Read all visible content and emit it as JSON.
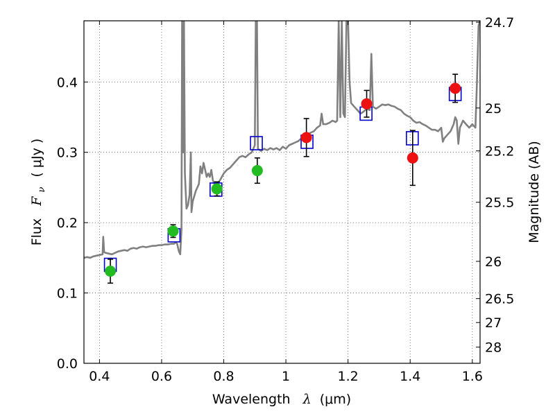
{
  "chart_data": {
    "type": "scatter",
    "title": "",
    "xlabel_prefix": "Wavelength",
    "xlabel_symbol": "λ",
    "xlabel_unit": "(μm)",
    "ylabel_prefix": "Flux",
    "ylabel_symbol_main": "F",
    "ylabel_symbol_sub": "ν",
    "ylabel_unit": "( μJy )",
    "y2label": "Magnitude (AB)",
    "xlim": [
      0.35,
      1.625
    ],
    "ylim": [
      0.0,
      0.487
    ],
    "grid": true,
    "x_ticks": [
      0.4,
      0.6,
      0.8,
      1.0,
      1.2,
      1.4,
      1.6
    ],
    "x_tick_labels": [
      "0.4",
      "0.6",
      "0.8",
      "1",
      "1.2",
      "1.4",
      "1.6"
    ],
    "y_ticks": [
      0.0,
      0.1,
      0.2,
      0.3,
      0.4
    ],
    "y_tick_labels": [
      "0.0",
      "0.1",
      "0.2",
      "0.3",
      "0.4"
    ],
    "y2_ticks": [
      {
        "label": "24.7",
        "flux": 0.485
      },
      {
        "label": "25",
        "flux": 0.363
      },
      {
        "label": "25.2",
        "flux": 0.302
      },
      {
        "label": "25.5",
        "flux": 0.229
      },
      {
        "label": "26",
        "flux": 0.145
      },
      {
        "label": "26.5",
        "flux": 0.092
      },
      {
        "label": "27",
        "flux": 0.058
      },
      {
        "label": "28",
        "flux": 0.023
      }
    ],
    "colors": {
      "spectrum": "#808080",
      "model": "#0000cc",
      "optical": "#22bb22",
      "nir": "#ee1111",
      "errorbar": "#000000",
      "grid": "#555555"
    },
    "series": [
      {
        "kind": "line",
        "color_key": "spectrum",
        "points": [
          [
            0.35,
            0.15
          ],
          [
            0.36,
            0.151
          ],
          [
            0.37,
            0.15
          ],
          [
            0.38,
            0.152
          ],
          [
            0.39,
            0.153
          ],
          [
            0.4,
            0.154
          ],
          [
            0.41,
            0.155
          ],
          [
            0.412,
            0.18
          ],
          [
            0.415,
            0.158
          ],
          [
            0.42,
            0.157
          ],
          [
            0.43,
            0.156
          ],
          [
            0.44,
            0.155
          ],
          [
            0.45,
            0.157
          ],
          [
            0.46,
            0.159
          ],
          [
            0.47,
            0.16
          ],
          [
            0.48,
            0.161
          ],
          [
            0.49,
            0.16
          ],
          [
            0.5,
            0.163
          ],
          [
            0.51,
            0.164
          ],
          [
            0.52,
            0.163
          ],
          [
            0.53,
            0.165
          ],
          [
            0.54,
            0.166
          ],
          [
            0.55,
            0.165
          ],
          [
            0.56,
            0.166
          ],
          [
            0.57,
            0.167
          ],
          [
            0.58,
            0.167
          ],
          [
            0.59,
            0.168
          ],
          [
            0.6,
            0.168
          ],
          [
            0.61,
            0.169
          ],
          [
            0.62,
            0.169
          ],
          [
            0.63,
            0.17
          ],
          [
            0.64,
            0.17
          ],
          [
            0.645,
            0.172
          ],
          [
            0.65,
            0.17
          ],
          [
            0.655,
            0.16
          ],
          [
            0.66,
            0.155
          ],
          [
            0.664,
            0.19
          ],
          [
            0.666,
            0.487
          ],
          [
            0.669,
            0.3
          ],
          [
            0.672,
            0.487
          ],
          [
            0.675,
            0.27
          ],
          [
            0.68,
            0.22
          ],
          [
            0.685,
            0.225
          ],
          [
            0.69,
            0.24
          ],
          [
            0.694,
            0.3
          ],
          [
            0.696,
            0.215
          ],
          [
            0.7,
            0.23
          ],
          [
            0.71,
            0.245
          ],
          [
            0.72,
            0.255
          ],
          [
            0.725,
            0.28
          ],
          [
            0.73,
            0.27
          ],
          [
            0.735,
            0.285
          ],
          [
            0.74,
            0.275
          ],
          [
            0.745,
            0.265
          ],
          [
            0.75,
            0.27
          ],
          [
            0.755,
            0.265
          ],
          [
            0.76,
            0.275
          ],
          [
            0.765,
            0.26
          ],
          [
            0.77,
            0.255
          ],
          [
            0.775,
            0.245
          ],
          [
            0.78,
            0.255
          ],
          [
            0.79,
            0.262
          ],
          [
            0.8,
            0.27
          ],
          [
            0.81,
            0.275
          ],
          [
            0.82,
            0.278
          ],
          [
            0.83,
            0.283
          ],
          [
            0.84,
            0.288
          ],
          [
            0.85,
            0.293
          ],
          [
            0.86,
            0.295
          ],
          [
            0.87,
            0.293
          ],
          [
            0.88,
            0.297
          ],
          [
            0.89,
            0.3
          ],
          [
            0.895,
            0.305
          ],
          [
            0.9,
            0.31
          ],
          [
            0.903,
            0.487
          ],
          [
            0.907,
            0.487
          ],
          [
            0.91,
            0.305
          ],
          [
            0.92,
            0.302
          ],
          [
            0.93,
            0.305
          ],
          [
            0.94,
            0.303
          ],
          [
            0.95,
            0.306
          ],
          [
            0.96,
            0.304
          ],
          [
            0.97,
            0.306
          ],
          [
            0.98,
            0.303
          ],
          [
            0.99,
            0.308
          ],
          [
            1.0,
            0.305
          ],
          [
            1.01,
            0.31
          ],
          [
            1.02,
            0.312
          ],
          [
            1.03,
            0.314
          ],
          [
            1.04,
            0.316
          ],
          [
            1.05,
            0.32
          ],
          [
            1.06,
            0.322
          ],
          [
            1.07,
            0.325
          ],
          [
            1.08,
            0.328
          ],
          [
            1.09,
            0.33
          ],
          [
            1.1,
            0.335
          ],
          [
            1.11,
            0.338
          ],
          [
            1.115,
            0.355
          ],
          [
            1.12,
            0.34
          ],
          [
            1.13,
            0.34
          ],
          [
            1.14,
            0.342
          ],
          [
            1.15,
            0.345
          ],
          [
            1.16,
            0.343
          ],
          [
            1.165,
            0.345
          ],
          [
            1.17,
            0.487
          ],
          [
            1.175,
            0.35
          ],
          [
            1.18,
            0.487
          ],
          [
            1.185,
            0.355
          ],
          [
            1.19,
            0.35
          ],
          [
            1.195,
            0.487
          ],
          [
            1.2,
            0.487
          ],
          [
            1.205,
            0.4
          ],
          [
            1.21,
            0.37
          ],
          [
            1.22,
            0.365
          ],
          [
            1.23,
            0.36
          ],
          [
            1.24,
            0.355
          ],
          [
            1.25,
            0.358
          ],
          [
            1.26,
            0.362
          ],
          [
            1.27,
            0.36
          ],
          [
            1.275,
            0.44
          ],
          [
            1.28,
            0.365
          ],
          [
            1.29,
            0.362
          ],
          [
            1.3,
            0.365
          ],
          [
            1.31,
            0.368
          ],
          [
            1.32,
            0.367
          ],
          [
            1.33,
            0.368
          ],
          [
            1.34,
            0.366
          ],
          [
            1.35,
            0.365
          ],
          [
            1.36,
            0.362
          ],
          [
            1.37,
            0.36
          ],
          [
            1.38,
            0.355
          ],
          [
            1.39,
            0.352
          ],
          [
            1.4,
            0.35
          ],
          [
            1.41,
            0.345
          ],
          [
            1.42,
            0.342
          ],
          [
            1.43,
            0.343
          ],
          [
            1.44,
            0.34
          ],
          [
            1.45,
            0.338
          ],
          [
            1.46,
            0.335
          ],
          [
            1.47,
            0.332
          ],
          [
            1.48,
            0.332
          ],
          [
            1.49,
            0.33
          ],
          [
            1.5,
            0.335
          ],
          [
            1.505,
            0.315
          ],
          [
            1.51,
            0.32
          ],
          [
            1.52,
            0.325
          ],
          [
            1.53,
            0.33
          ],
          [
            1.54,
            0.34
          ],
          [
            1.545,
            0.35
          ],
          [
            1.55,
            0.345
          ],
          [
            1.555,
            0.312
          ],
          [
            1.56,
            0.335
          ],
          [
            1.57,
            0.345
          ],
          [
            1.58,
            0.34
          ],
          [
            1.59,
            0.335
          ],
          [
            1.6,
            0.34
          ],
          [
            1.61,
            0.335
          ],
          [
            1.615,
            0.4
          ],
          [
            1.62,
            0.48
          ],
          [
            1.625,
            0.487
          ]
        ]
      },
      {
        "kind": "open-square",
        "color_key": "model",
        "x": [
          0.435,
          0.64,
          0.775,
          0.905,
          1.068,
          1.258,
          1.407,
          1.545
        ],
        "y": [
          0.14,
          0.182,
          0.247,
          0.313,
          0.315,
          0.355,
          0.32,
          0.383
        ]
      },
      {
        "kind": "filled-circle",
        "color_key": "optical",
        "x": [
          0.435,
          0.637,
          0.778,
          0.908
        ],
        "y": [
          0.131,
          0.188,
          0.248,
          0.274
        ],
        "err": [
          0.017,
          0.009,
          0.01,
          0.018
        ]
      },
      {
        "kind": "filled-circle",
        "color_key": "nir",
        "x": [
          1.066,
          1.26,
          1.408,
          1.545
        ],
        "y": [
          0.321,
          0.369,
          0.292,
          0.391
        ],
        "err": [
          0.027,
          0.019,
          0.039,
          0.02
        ]
      }
    ]
  }
}
